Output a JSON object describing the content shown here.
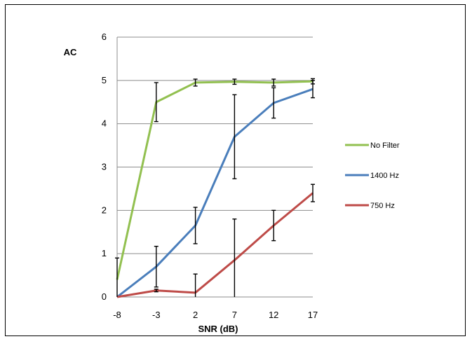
{
  "chart_data": {
    "type": "line",
    "title": "",
    "xlabel": "SNR (dB)",
    "ylabel": "AC",
    "x": [
      -8,
      -3,
      2,
      7,
      12,
      17
    ],
    "xticks": [
      "-8",
      "-3",
      "2",
      "7",
      "12",
      "17"
    ],
    "ylim": [
      0,
      6
    ],
    "yticks": [
      "0",
      "1",
      "2",
      "3",
      "4",
      "5",
      "6"
    ],
    "grid": "horizontal",
    "legend_position": "right",
    "series": [
      {
        "name": "No Filter",
        "color": "#92c050",
        "values": [
          0.4,
          4.5,
          4.95,
          4.97,
          4.95,
          4.98
        ],
        "error": [
          0.5,
          0.45,
          0.08,
          0.06,
          0.08,
          0.06
        ]
      },
      {
        "name": "1400 Hz",
        "color": "#4a7ebb",
        "values": [
          0.0,
          0.7,
          1.65,
          3.7,
          4.48,
          4.8
        ],
        "error": [
          0.0,
          0.47,
          0.42,
          0.97,
          0.35,
          0.2
        ]
      },
      {
        "name": "750 Hz",
        "color": "#be4b48",
        "values": [
          0.0,
          0.15,
          0.1,
          0.85,
          1.65,
          2.4
        ],
        "error": [
          0.0,
          0.03,
          0.43,
          0.95,
          0.35,
          0.2
        ]
      }
    ]
  }
}
